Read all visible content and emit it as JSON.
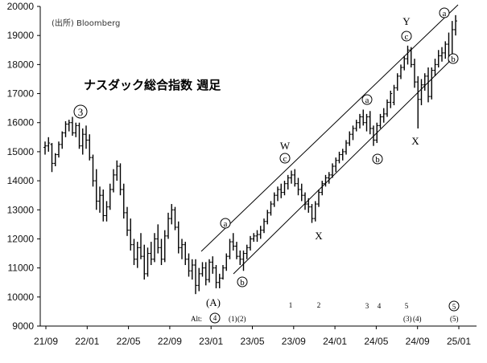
{
  "chart_data": {
    "type": "bar",
    "title": "ナスダック総合指数 週足",
    "source": "(出所) Bloomberg",
    "xlabel": "",
    "ylabel": "",
    "ylim": [
      9000,
      20000
    ],
    "grid": false,
    "y_ticks": [
      "9000",
      "10000",
      "11000",
      "12000",
      "13000",
      "14000",
      "15000",
      "16000",
      "17000",
      "18000",
      "19000",
      "20000"
    ],
    "x_ticks": [
      "21/09",
      "22/01",
      "22/05",
      "22/09",
      "23/01",
      "23/05",
      "23/09",
      "24/01",
      "24/05",
      "24/09",
      "25/01"
    ],
    "series": [
      {
        "values": [
          [
            0,
            15150,
            15350,
            14900,
            15200
          ],
          [
            1,
            15200,
            15500,
            15000,
            15300
          ],
          [
            2,
            15250,
            15300,
            14300,
            14600
          ],
          [
            3,
            14600,
            14950,
            14500,
            14900
          ],
          [
            4,
            14900,
            15350,
            14800,
            15250
          ],
          [
            5,
            15250,
            15700,
            15100,
            15650
          ],
          [
            6,
            15650,
            16050,
            15500,
            15950
          ],
          [
            7,
            15950,
            16100,
            15700,
            16000
          ],
          [
            8,
            16000,
            16200,
            15550,
            15650
          ],
          [
            9,
            15650,
            16000,
            15500,
            15900
          ],
          [
            10,
            15900,
            16000,
            15100,
            15200
          ],
          [
            11,
            15200,
            15800,
            14900,
            15600
          ],
          [
            12,
            15600,
            15900,
            15100,
            15400
          ],
          [
            13,
            15400,
            15600,
            14700,
            14800
          ],
          [
            14,
            14800,
            14900,
            13800,
            14000
          ],
          [
            15,
            14000,
            14400,
            13000,
            13300
          ],
          [
            16,
            13300,
            13800,
            12900,
            13500
          ],
          [
            17,
            13500,
            13700,
            12600,
            12800
          ],
          [
            18,
            12800,
            13300,
            12600,
            13100
          ],
          [
            19,
            13100,
            13900,
            13000,
            13700
          ],
          [
            20,
            13700,
            14400,
            13600,
            14200
          ],
          [
            21,
            14200,
            14700,
            14000,
            14500
          ],
          [
            22,
            14500,
            14600,
            13500,
            13700
          ],
          [
            23,
            13700,
            13900,
            12700,
            12900
          ],
          [
            24,
            12900,
            13100,
            12100,
            12300
          ],
          [
            25,
            12300,
            12700,
            11600,
            11800
          ],
          [
            26,
            11800,
            12000,
            11100,
            11300
          ],
          [
            27,
            11300,
            11900,
            11000,
            11700
          ],
          [
            28,
            11700,
            12200,
            11300,
            11400
          ],
          [
            29,
            11400,
            11800,
            10600,
            10800
          ],
          [
            30,
            10800,
            11700,
            10700,
            11500
          ],
          [
            31,
            11500,
            11900,
            11100,
            11300
          ],
          [
            32,
            11300,
            12200,
            11200,
            12000
          ],
          [
            33,
            12000,
            12500,
            11500,
            11700
          ],
          [
            34,
            11700,
            12000,
            11100,
            11300
          ],
          [
            35,
            11300,
            12300,
            11200,
            12100
          ],
          [
            36,
            12100,
            12900,
            12000,
            12700
          ],
          [
            37,
            12700,
            13200,
            12500,
            13000
          ],
          [
            38,
            13000,
            13100,
            12300,
            12400
          ],
          [
            39,
            12400,
            12600,
            11500,
            11700
          ],
          [
            40,
            11700,
            12000,
            11300,
            11800
          ],
          [
            41,
            11800,
            11900,
            11100,
            11300
          ],
          [
            42,
            11300,
            11500,
            10700,
            10900
          ],
          [
            43,
            10900,
            11300,
            10600,
            11100
          ],
          [
            44,
            11100,
            11300,
            10100,
            10400
          ],
          [
            45,
            10400,
            11000,
            10200,
            10800
          ],
          [
            46,
            10800,
            11200,
            10700,
            11000
          ],
          [
            47,
            11000,
            11200,
            10400,
            10600
          ],
          [
            48,
            10600,
            11300,
            10500,
            11200
          ],
          [
            49,
            11200,
            11400,
            10800,
            11000
          ],
          [
            50,
            11000,
            11100,
            10300,
            10500
          ],
          [
            51,
            10500,
            10800,
            10300,
            10650
          ],
          [
            52,
            10650,
            11100,
            10600,
            11000
          ],
          [
            53,
            11000,
            11500,
            10900,
            11400
          ],
          [
            54,
            11400,
            12000,
            11300,
            11900
          ],
          [
            55,
            11900,
            12200,
            11600,
            11750
          ],
          [
            56,
            11750,
            11900,
            11300,
            11400
          ],
          [
            57,
            11400,
            11600,
            11100,
            11300
          ],
          [
            58,
            11300,
            11600,
            10900,
            11500
          ],
          [
            59,
            11500,
            11800,
            11300,
            11700
          ],
          [
            60,
            11700,
            12100,
            11600,
            12000
          ],
          [
            61,
            12000,
            12200,
            11900,
            12100
          ],
          [
            62,
            12100,
            12300,
            11900,
            12150
          ],
          [
            63,
            12150,
            12450,
            12000,
            12300
          ],
          [
            64,
            12300,
            12700,
            12200,
            12600
          ],
          [
            65,
            12600,
            13000,
            12500,
            12900
          ],
          [
            66,
            12900,
            13300,
            12800,
            13200
          ],
          [
            67,
            13200,
            13600,
            13100,
            13500
          ],
          [
            68,
            13500,
            13800,
            13300,
            13700
          ],
          [
            69,
            13700,
            13900,
            13400,
            13600
          ],
          [
            70,
            13600,
            14000,
            13500,
            13900
          ],
          [
            71,
            13900,
            14200,
            13700,
            14100
          ],
          [
            72,
            14100,
            14350,
            13900,
            14200
          ],
          [
            73,
            14200,
            14400,
            13800,
            13900
          ],
          [
            74,
            13900,
            14100,
            13500,
            13700
          ],
          [
            75,
            13700,
            13900,
            13300,
            13500
          ],
          [
            76,
            13500,
            13600,
            13000,
            13200
          ],
          [
            77,
            13200,
            13400,
            12900,
            13100
          ],
          [
            78,
            13100,
            13200,
            12550,
            12700
          ],
          [
            79,
            12700,
            13300,
            12600,
            13200
          ],
          [
            80,
            13200,
            13700,
            13100,
            13600
          ],
          [
            81,
            13600,
            14000,
            13500,
            13900
          ],
          [
            82,
            13900,
            14200,
            13800,
            14100
          ],
          [
            83,
            14100,
            14300,
            13900,
            14200
          ],
          [
            84,
            14200,
            14600,
            14100,
            14500
          ],
          [
            85,
            14500,
            14800,
            14300,
            14700
          ],
          [
            86,
            14700,
            15000,
            14600,
            14900
          ],
          [
            87,
            14900,
            15100,
            14700,
            15000
          ],
          [
            88,
            15000,
            15400,
            14900,
            15300
          ],
          [
            89,
            15300,
            15700,
            15200,
            15600
          ],
          [
            90,
            15600,
            15900,
            15400,
            15800
          ],
          [
            91,
            15800,
            16100,
            15700,
            16000
          ],
          [
            92,
            16000,
            16300,
            15800,
            16200
          ],
          [
            93,
            16200,
            16450,
            15900,
            16000
          ],
          [
            94,
            16000,
            16300,
            15700,
            16200
          ],
          [
            95,
            16200,
            16400,
            15600,
            15800
          ],
          [
            96,
            15800,
            15900,
            15200,
            15400
          ],
          [
            97,
            15400,
            16000,
            15300,
            15900
          ],
          [
            98,
            15900,
            16300,
            15800,
            16200
          ],
          [
            99,
            16200,
            16500,
            16000,
            16300
          ],
          [
            100,
            16300,
            16800,
            16200,
            16700
          ],
          [
            101,
            16700,
            17100,
            16500,
            17000
          ],
          [
            102,
            16700,
            17300,
            16600,
            17200
          ],
          [
            103,
            17200,
            17700,
            17100,
            17600
          ],
          [
            104,
            17600,
            18000,
            17500,
            17900
          ],
          [
            105,
            17900,
            18300,
            17800,
            18200
          ],
          [
            106,
            18200,
            18650,
            18000,
            18500
          ],
          [
            107,
            18500,
            18600,
            17900,
            18000
          ],
          [
            108,
            18000,
            18200,
            17200,
            17400
          ],
          [
            109,
            17400,
            17600,
            15800,
            16800
          ],
          [
            110,
            16800,
            17500,
            16600,
            17300
          ],
          [
            111,
            17300,
            17700,
            17100,
            17600
          ],
          [
            112,
            17600,
            17900,
            16700,
            16900
          ],
          [
            113,
            16900,
            17900,
            16800,
            17800
          ],
          [
            114,
            17800,
            18200,
            17600,
            18000
          ],
          [
            115,
            18000,
            18500,
            17900,
            18300
          ],
          [
            116,
            18300,
            18600,
            18100,
            18400
          ],
          [
            117,
            18400,
            18800,
            18200,
            18700
          ],
          [
            118,
            18700,
            19100,
            18100,
            18300
          ],
          [
            119,
            18300,
            19500,
            18200,
            19200
          ],
          [
            120,
            19200,
            19700,
            19000,
            19500
          ]
        ]
      }
    ],
    "annotations": {
      "w3": "3",
      "W": "W",
      "Y": "Y",
      "X": "X",
      "A_paren": "(A)",
      "alt": "Alt:",
      "alt4": "4",
      "c_lbl": "c",
      "a_lbl": "a",
      "b_lbl": "b",
      "c5": "5",
      "sub1": "1",
      "sub2": "2",
      "sub3": "3",
      "sub4": "4",
      "sub5": "5",
      "sub_p1": "(1)",
      "sub_p2": "(2)",
      "sub_p3": "(3)",
      "sub_p4": "(4)",
      "sub_p5": "(5)"
    }
  }
}
